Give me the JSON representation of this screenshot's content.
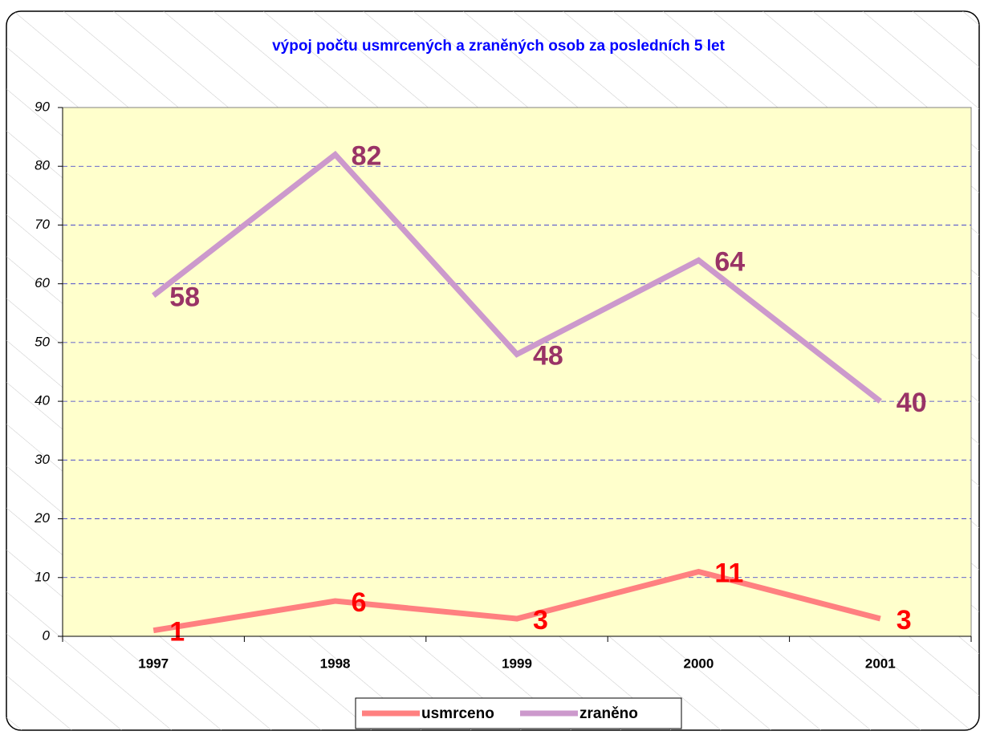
{
  "chart_data": {
    "type": "line",
    "title": "výpoj počtu usmrcených a zraněných osob za posledních 5 let",
    "categories": [
      "1997",
      "1998",
      "1999",
      "2000",
      "2001"
    ],
    "series": [
      {
        "name": "usmrceno",
        "color": "#ff8080",
        "label_color": "#ff0000",
        "values": [
          1,
          6,
          3,
          11,
          3
        ]
      },
      {
        "name": "zraněno",
        "color": "#cc99cc",
        "label_color": "#993366",
        "values": [
          58,
          82,
          48,
          64,
          40
        ]
      }
    ],
    "ylim": [
      0,
      90
    ],
    "yticks": [
      0,
      10,
      20,
      30,
      40,
      50,
      60,
      70,
      80,
      90
    ],
    "grid": true,
    "legend": "bottom"
  }
}
